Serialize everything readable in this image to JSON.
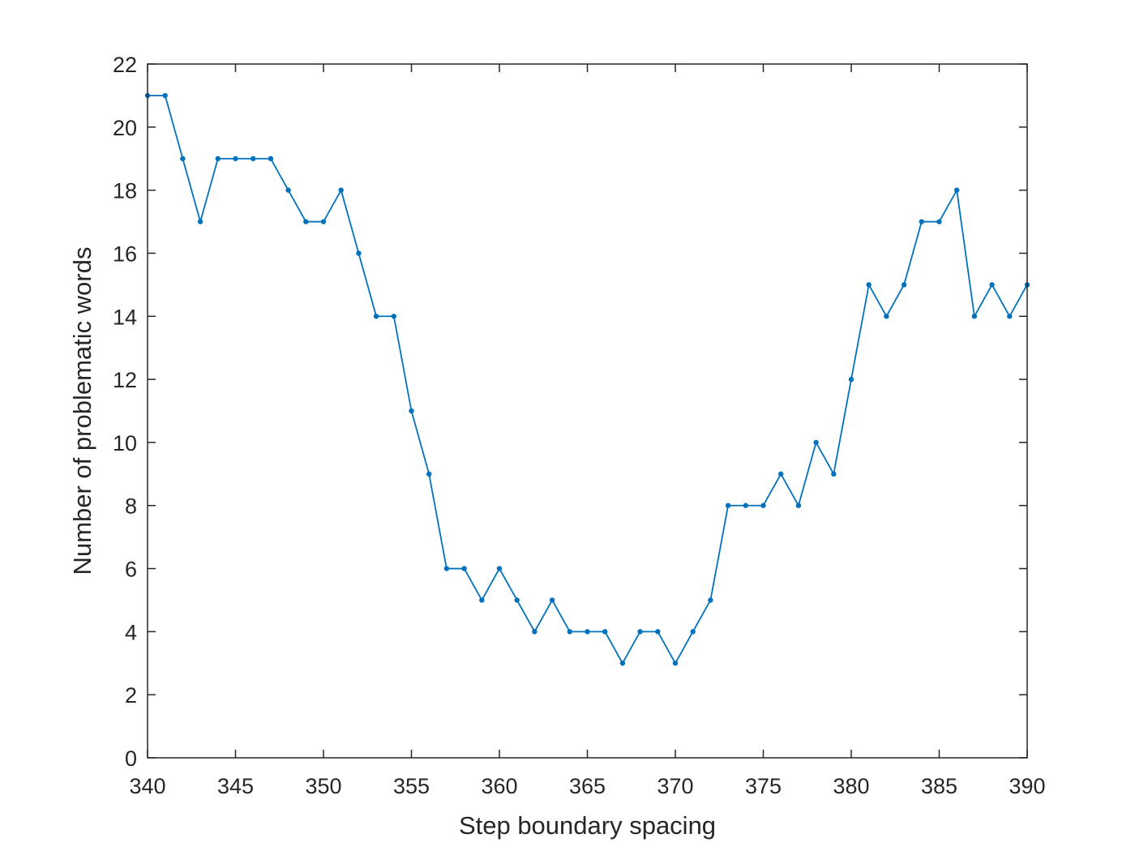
{
  "chart_data": {
    "type": "line",
    "xlabel": "Step boundary spacing",
    "ylabel": "Number of problematic words",
    "xlim": [
      340,
      390
    ],
    "ylim": [
      0,
      22
    ],
    "xticks": [
      340,
      345,
      350,
      355,
      360,
      365,
      370,
      375,
      380,
      385,
      390
    ],
    "yticks": [
      0,
      2,
      4,
      6,
      8,
      10,
      12,
      14,
      16,
      18,
      20,
      22
    ],
    "grid": false,
    "box": true,
    "series": [
      {
        "color": "#0072BD",
        "marker": "dot",
        "x": [
          340,
          341,
          342,
          343,
          344,
          345,
          346,
          347,
          348,
          349,
          350,
          351,
          352,
          353,
          354,
          355,
          356,
          357,
          358,
          359,
          360,
          361,
          362,
          363,
          364,
          365,
          366,
          367,
          368,
          369,
          370,
          371,
          372,
          373,
          374,
          375,
          376,
          377,
          378,
          379,
          380,
          381,
          382,
          383,
          384,
          385,
          386,
          387,
          388,
          389,
          390
        ],
        "y": [
          21,
          21,
          19,
          17,
          19,
          19,
          19,
          19,
          18,
          17,
          17,
          18,
          16,
          14,
          14,
          11,
          9,
          6,
          6,
          5,
          6,
          5,
          4,
          5,
          4,
          4,
          4,
          3,
          4,
          4,
          3,
          4,
          5,
          8,
          8,
          8,
          9,
          8,
          10,
          9,
          12,
          15,
          14,
          15,
          17,
          17,
          18,
          14,
          15,
          14,
          15
        ]
      }
    ]
  }
}
